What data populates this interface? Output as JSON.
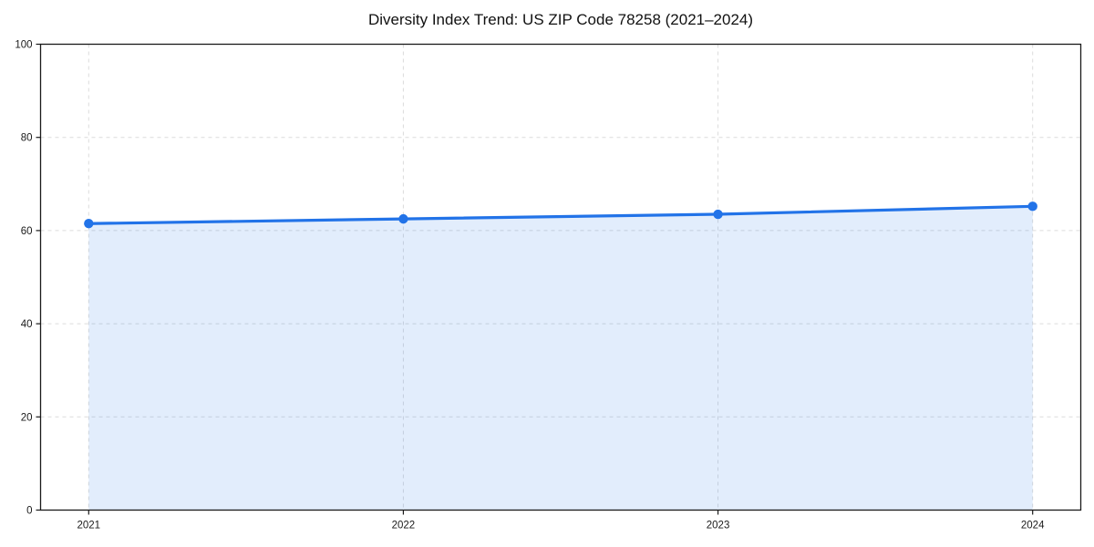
{
  "chart_data": {
    "type": "area",
    "title": "Diversity Index Trend: US ZIP Code 78258 (2021–2024)",
    "x": [
      "2021",
      "2022",
      "2023",
      "2024"
    ],
    "series": [
      {
        "name": "Diversity Index",
        "values": [
          61.5,
          62.5,
          63.5,
          65.2
        ]
      }
    ],
    "xlabel": "",
    "ylabel": "",
    "ylim": [
      0,
      100
    ],
    "yticks": [
      0,
      20,
      40,
      60,
      80,
      100
    ],
    "grid": true,
    "grid_style": "dashed",
    "legend_position": "none",
    "colors": {
      "line": "#2273e8",
      "marker": "#2273e8",
      "fill": "#2273e8",
      "fill_opacity": "0.13",
      "gridline": "#dcdcdc",
      "spine": "#1a1a1a",
      "tick_text": "#1a1a1a",
      "background": "#ffffff"
    }
  }
}
